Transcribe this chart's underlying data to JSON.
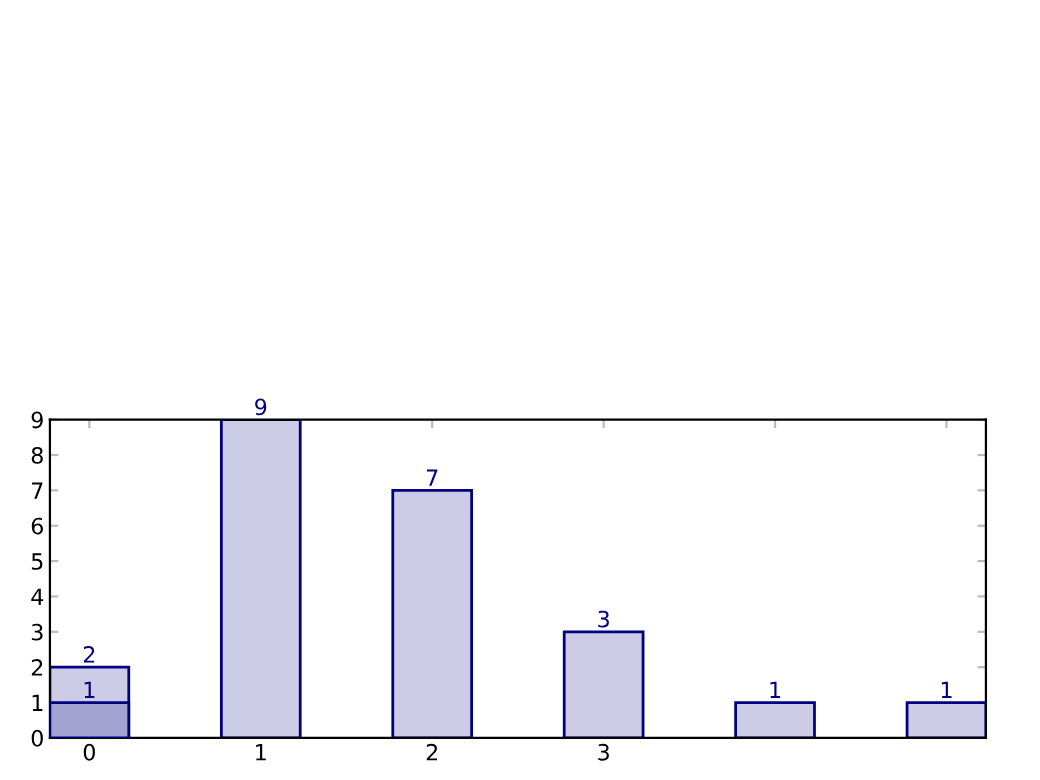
{
  "chart_data": {
    "type": "bar",
    "categories": [
      "0",
      "1",
      "2",
      "3",
      null,
      null
    ],
    "series": [
      {
        "color": "#cccce6",
        "values": [
          2,
          9,
          7,
          3,
          1,
          1
        ]
      },
      {
        "color": "#a3a3d1",
        "values": [
          1,
          null,
          null,
          null,
          null,
          null
        ]
      }
    ],
    "ylim": [
      0,
      9
    ],
    "yticks": [
      0,
      1,
      2,
      3,
      4,
      5,
      6,
      7,
      8,
      9
    ],
    "grid": false,
    "legend": false,
    "data_labels": true
  }
}
